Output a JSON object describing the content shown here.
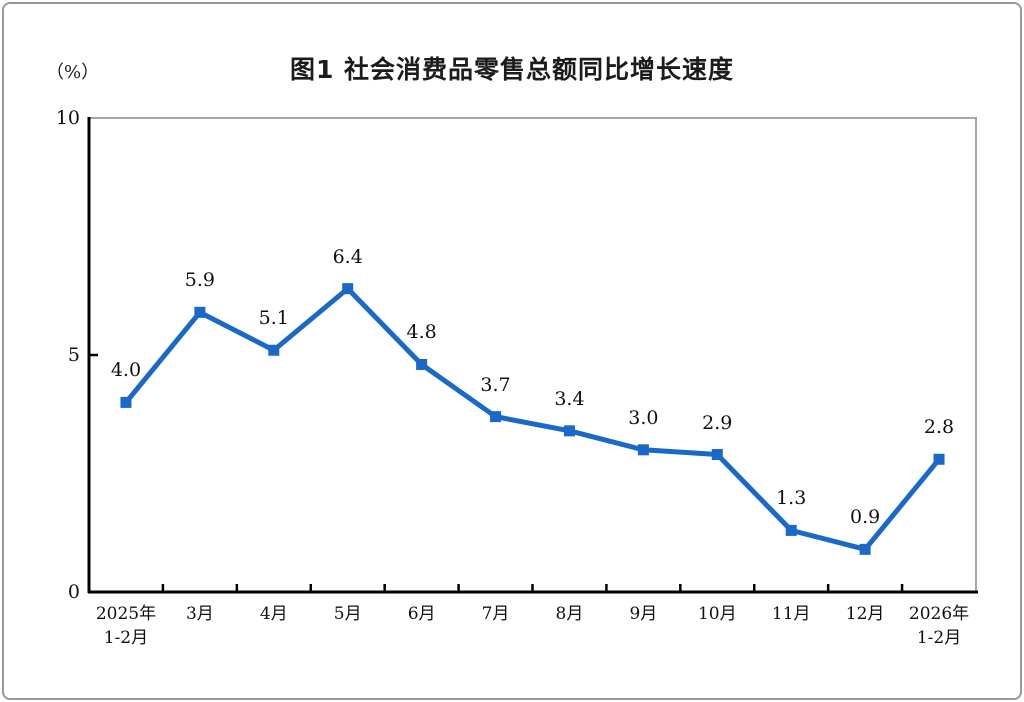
{
  "page": {
    "background": "#ffffff",
    "border_color": "#999999"
  },
  "chart_data": {
    "type": "line",
    "title": "图1  社会消费品零售总额同比增长速度",
    "ylabel": "（%）",
    "xlabel": "",
    "categories": [
      "2025年\n1-2月",
      "3月",
      "4月",
      "5月",
      "6月",
      "7月",
      "8月",
      "9月",
      "10月",
      "11月",
      "12月",
      "2026年\n1-2月"
    ],
    "values": [
      4.0,
      5.9,
      5.1,
      6.4,
      4.8,
      3.7,
      3.4,
      3.0,
      2.9,
      1.3,
      0.9,
      2.8
    ],
    "point_labels": [
      "4.0",
      "5.9",
      "5.1",
      "6.4",
      "4.8",
      "3.7",
      "3.4",
      "3.0",
      "2.9",
      "1.3",
      "0.9",
      "2.8"
    ],
    "ylim": [
      0,
      10
    ],
    "yticks": [
      0,
      5,
      10
    ],
    "ytick_labels": [
      "0",
      "5",
      "10"
    ],
    "grid": "off",
    "legend": "none",
    "marker": "square",
    "line_color": "#1A68C8",
    "axis_color": "#000000",
    "frame_color": "#A6A6A6",
    "label_color": "#111111"
  }
}
